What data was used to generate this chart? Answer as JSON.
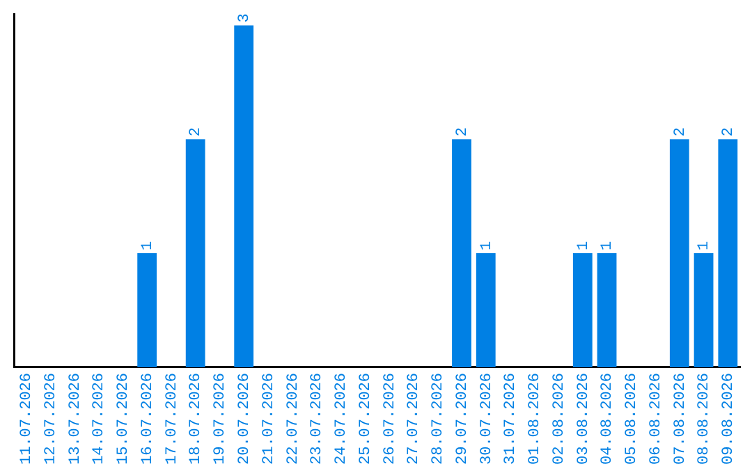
{
  "chart_data": {
    "type": "bar",
    "categories": [
      "11.07.2026",
      "12.07.2026",
      "13.07.2026",
      "14.07.2026",
      "15.07.2026",
      "16.07.2026",
      "17.07.2026",
      "18.07.2026",
      "19.07.2026",
      "20.07.2026",
      "21.07.2026",
      "22.07.2026",
      "23.07.2026",
      "24.07.2026",
      "25.07.2026",
      "26.07.2026",
      "27.07.2026",
      "28.07.2026",
      "29.07.2026",
      "30.07.2026",
      "31.07.2026",
      "01.08.2026",
      "02.08.2026",
      "03.08.2026",
      "04.08.2026",
      "05.08.2026",
      "06.08.2026",
      "07.08.2026",
      "08.08.2026",
      "09.08.2026"
    ],
    "values": [
      0,
      0,
      0,
      0,
      0,
      1,
      0,
      2,
      0,
      3,
      0,
      0,
      0,
      0,
      0,
      0,
      0,
      0,
      2,
      1,
      0,
      0,
      0,
      1,
      1,
      0,
      0,
      2,
      1,
      2
    ],
    "value_labels": [
      null,
      null,
      null,
      null,
      null,
      "1",
      null,
      "2",
      null,
      "3",
      null,
      null,
      null,
      null,
      null,
      null,
      null,
      null,
      "2",
      "1",
      null,
      null,
      null,
      "1",
      "1",
      null,
      null,
      "2",
      "1",
      "2"
    ],
    "color": "#0080e4",
    "ylim": [
      0,
      3.1
    ],
    "tick_labels": "x",
    "grid": false,
    "legend": false
  }
}
